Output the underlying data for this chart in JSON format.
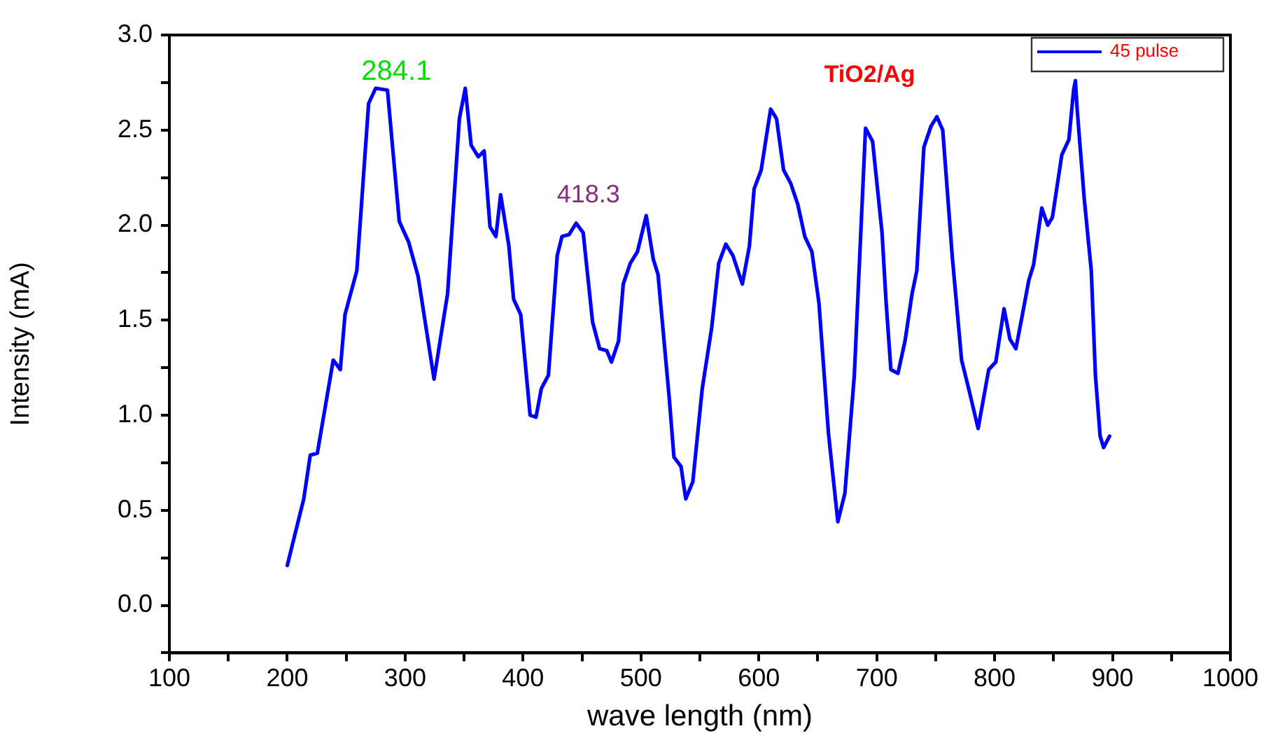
{
  "chart_data": {
    "type": "line",
    "xlabel": "wave length (nm)",
    "ylabel": "Intensity (mA)",
    "xlim": [
      100,
      1000
    ],
    "ylim": [
      -0.25,
      3.0
    ],
    "xticks": [
      100,
      {
        "value": 150,
        "label": null
      },
      200,
      {
        "value": 250,
        "label": null
      },
      300,
      {
        "value": 350,
        "label": null
      },
      400,
      {
        "value": 450,
        "label": null
      },
      500,
      {
        "value": 550,
        "label": null
      },
      600,
      {
        "value": 650,
        "label": null
      },
      700,
      {
        "value": 750,
        "label": null
      },
      800,
      {
        "value": 850,
        "label": null
      },
      900,
      {
        "value": 950,
        "label": null
      },
      1000
    ],
    "yticks": [
      {
        "value": -0.25,
        "label": null
      },
      {
        "value": 0,
        "label": "0.0"
      },
      {
        "value": 0.25,
        "label": null
      },
      0.5,
      {
        "value": 0.75,
        "label": null
      },
      {
        "value": 1,
        "label": "1.0"
      },
      {
        "value": 1.25,
        "label": null
      },
      1.5,
      {
        "value": 1.75,
        "label": null
      },
      {
        "value": 2,
        "label": "2.0"
      },
      {
        "value": 2.25,
        "label": null
      },
      2.5,
      {
        "value": 2.75,
        "label": null
      },
      {
        "value": 3,
        "label": "3.0"
      }
    ],
    "grid": false,
    "legend": "top right",
    "marker": "none",
    "line_style": "solid",
    "annotations": [
      "284.1",
      "418.3",
      "TiO2/Ag"
    ],
    "series": [
      {
        "name": "45 pulse",
        "color": "#0000ff",
        "x": [
          200,
          214,
          219.5,
          225.5,
          239,
          245,
          249,
          259,
          269,
          275,
          285,
          295,
          303,
          311,
          324.5,
          336,
          346,
          351,
          356,
          362,
          367,
          372,
          377,
          381,
          388,
          392,
          398,
          406,
          411,
          415.5,
          421.5,
          429,
          433,
          439,
          445,
          451,
          459,
          465,
          471,
          475,
          481,
          485,
          491,
          497,
          504.5,
          510.5,
          514.5,
          524,
          528,
          534,
          538,
          544,
          552,
          560,
          566,
          572,
          578,
          586,
          592,
          596,
          602,
          610,
          615,
          621,
          627,
          633,
          639,
          645,
          651,
          659,
          667,
          673,
          681,
          690.5,
          696.5,
          704.5,
          708,
          712,
          718,
          724,
          730,
          734,
          740,
          746,
          751,
          756,
          764,
          772,
          778,
          786,
          795,
          801,
          808,
          813,
          818,
          823,
          829,
          833,
          840,
          845,
          849,
          857,
          863,
          867,
          868.5,
          870,
          876,
          882,
          885.5,
          889.5,
          892.5,
          897.5
        ],
        "values": [
          0.21,
          0.56,
          0.79,
          0.8,
          1.29,
          1.24,
          1.53,
          1.76,
          2.64,
          2.72,
          2.71,
          2.02,
          1.91,
          1.73,
          1.19,
          1.64,
          2.56,
          2.72,
          2.42,
          2.36,
          2.39,
          1.99,
          1.94,
          2.16,
          1.89,
          1.61,
          1.53,
          1.0,
          0.99,
          1.14,
          1.21,
          1.84,
          1.94,
          1.95,
          2.01,
          1.96,
          1.49,
          1.35,
          1.34,
          1.28,
          1.39,
          1.69,
          1.8,
          1.86,
          2.05,
          1.82,
          1.74,
          1.09,
          0.78,
          0.73,
          0.56,
          0.65,
          1.14,
          1.46,
          1.8,
          1.9,
          1.84,
          1.69,
          1.89,
          2.19,
          2.29,
          2.61,
          2.56,
          2.29,
          2.22,
          2.11,
          1.94,
          1.86,
          1.59,
          0.91,
          0.44,
          0.59,
          1.21,
          2.51,
          2.44,
          1.96,
          1.59,
          1.24,
          1.22,
          1.39,
          1.64,
          1.76,
          2.41,
          2.52,
          2.57,
          2.5,
          1.84,
          1.29,
          1.14,
          0.93,
          1.24,
          1.28,
          1.56,
          1.4,
          1.35,
          1.51,
          1.71,
          1.79,
          2.09,
          2.0,
          2.04,
          2.37,
          2.45,
          2.71,
          2.76,
          2.61,
          2.14,
          1.76,
          1.21,
          0.89,
          0.83,
          0.89
        ]
      }
    ]
  }
}
